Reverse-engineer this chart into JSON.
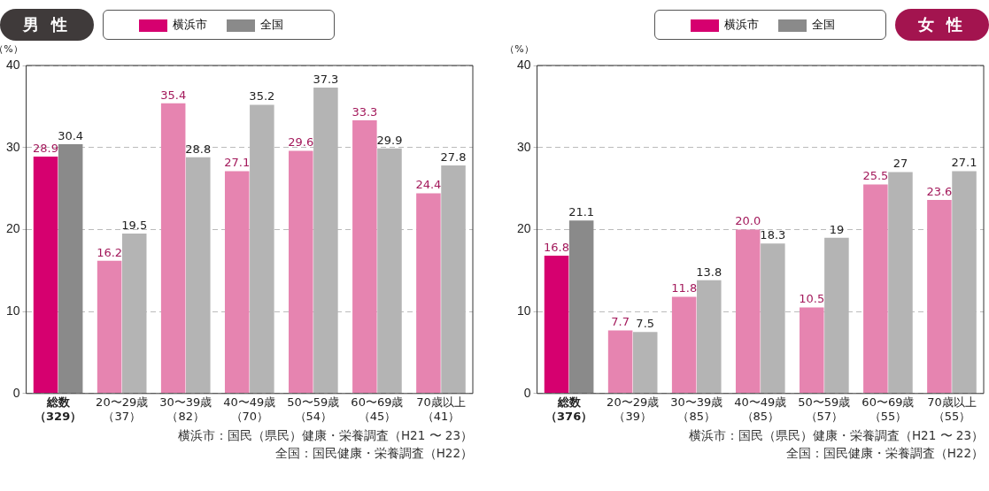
{
  "chart_data": [
    {
      "type": "bar",
      "title": "男 性",
      "ylabel": "（%）",
      "categories": [
        "総数（329）",
        "20〜29歳（37）",
        "30〜39歳（82）",
        "40〜49歳（70）",
        "50〜59歳（54）",
        "60〜69歳（45）",
        "70歳以上（41）"
      ],
      "series": [
        {
          "name": "横浜市",
          "colors": [
            "#d6006f",
            "#e684b0",
            "#e684b0",
            "#e684b0",
            "#e684b0",
            "#e684b0",
            "#e684b0"
          ],
          "values": [
            28.9,
            16.2,
            35.4,
            27.1,
            29.6,
            33.3,
            24.4
          ],
          "value_labels": [
            "28.9",
            "16.2",
            "35.4",
            "27.1",
            "29.6",
            "33.3",
            "24.4"
          ]
        },
        {
          "name": "全国",
          "colors": [
            "#8a8a8a",
            "#b4b4b4",
            "#b4b4b4",
            "#b4b4b4",
            "#b4b4b4",
            "#b4b4b4",
            "#b4b4b4"
          ],
          "values": [
            30.4,
            19.5,
            28.8,
            35.2,
            37.3,
            29.9,
            27.8
          ],
          "value_labels": [
            "30.4",
            "19.5",
            "28.8",
            "35.2",
            "37.3",
            "29.9",
            "27.8"
          ]
        }
      ],
      "ylim": [
        0,
        40
      ],
      "yticks": [
        0,
        10,
        20,
        30,
        40
      ],
      "grid": "y",
      "legend": "top",
      "annotations": [
        "横浜市：国民（県民）健康・栄養調査（H21 〜 23）",
        "全国：国民健康・栄養調査（H22）"
      ]
    },
    {
      "type": "bar",
      "title": "女 性",
      "ylabel": "（%）",
      "categories": [
        "総数（376）",
        "20〜29歳（39）",
        "30〜39歳（85）",
        "40〜49歳（85）",
        "50〜59歳（57）",
        "60〜69歳（55）",
        "70歳以上（55）"
      ],
      "series": [
        {
          "name": "横浜市",
          "colors": [
            "#d6006f",
            "#e684b0",
            "#e684b0",
            "#e684b0",
            "#e684b0",
            "#e684b0",
            "#e684b0"
          ],
          "values": [
            16.8,
            7.7,
            11.8,
            20.0,
            10.5,
            25.5,
            23.6
          ],
          "value_labels": [
            "16.8",
            "7.7",
            "11.8",
            "20.0",
            "10.5",
            "25.5",
            "23.6"
          ]
        },
        {
          "name": "全国",
          "colors": [
            "#8a8a8a",
            "#b4b4b4",
            "#b4b4b4",
            "#b4b4b4",
            "#b4b4b4",
            "#b4b4b4",
            "#b4b4b4"
          ],
          "values": [
            21.1,
            7.5,
            13.8,
            18.3,
            19,
            27,
            27.1
          ],
          "value_labels": [
            "21.1",
            "7.5",
            "13.8",
            "18.3",
            "19",
            "27",
            "27.1"
          ]
        }
      ],
      "ylim": [
        0,
        40
      ],
      "yticks": [
        0,
        10,
        20,
        30,
        40
      ],
      "grid": "y",
      "legend": "top",
      "annotations": [
        "横浜市：国民（県民）健康・栄養調査（H21 〜 23）",
        "全国：国民健康・栄養調査（H22）"
      ]
    }
  ]
}
